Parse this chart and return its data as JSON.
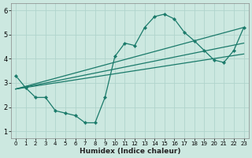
{
  "xlabel": "Humidex (Indice chaleur)",
  "bg_color": "#cce8e0",
  "line_color": "#1a7a6a",
  "grid_color": "#b0d4cc",
  "xlim": [
    -0.5,
    23.5
  ],
  "ylim": [
    0.7,
    6.3
  ],
  "xticks": [
    0,
    1,
    2,
    3,
    4,
    5,
    6,
    7,
    8,
    9,
    10,
    11,
    12,
    13,
    14,
    15,
    16,
    17,
    18,
    19,
    20,
    21,
    22,
    23
  ],
  "yticks": [
    1,
    2,
    3,
    4,
    5,
    6
  ],
  "curve_x": [
    0,
    1,
    2,
    3,
    4,
    5,
    6,
    7,
    8,
    9,
    10,
    11,
    12,
    13,
    14,
    15,
    16,
    17,
    18,
    19,
    20,
    21,
    22,
    23
  ],
  "curve_y": [
    3.3,
    2.8,
    2.4,
    2.4,
    1.85,
    1.75,
    1.65,
    1.35,
    1.35,
    2.4,
    4.1,
    4.65,
    4.55,
    5.3,
    5.75,
    5.85,
    5.65,
    5.1,
    4.75,
    4.35,
    3.95,
    3.85,
    4.35,
    5.3
  ],
  "line1_x": [
    0,
    23
  ],
  "line1_y": [
    2.75,
    4.2
  ],
  "line2_x": [
    0,
    23
  ],
  "line2_y": [
    2.75,
    4.65
  ],
  "line3_x": [
    0,
    23
  ],
  "line3_y": [
    2.75,
    5.3
  ]
}
